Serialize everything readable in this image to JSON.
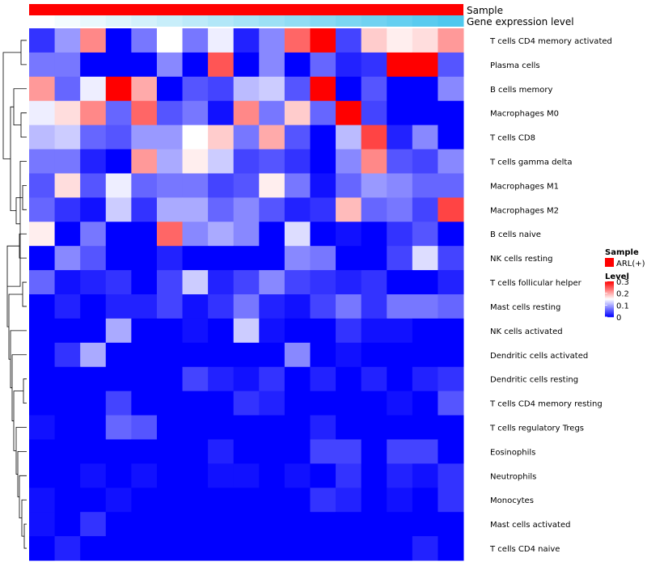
{
  "chart_data": {
    "type": "heatmap",
    "title": "",
    "annotation_tracks": [
      {
        "name": "Sample",
        "color_start": "#ff0000",
        "color_end": "#ff0000"
      },
      {
        "name": "Gene expression level",
        "color_start": "#ffffff",
        "color_end": "#4fc8ee"
      }
    ],
    "rows": [
      "T cells CD4 memory activated",
      "Plasma cells",
      "B cells memory",
      "Macrophages M0",
      "T cells CD8",
      "T cells gamma delta",
      "Macrophages M1",
      "Macrophages M2",
      "B cells naive",
      "NK cells resting",
      "T cells follicular helper",
      "Mast cells resting",
      "NK cells activated",
      "Dendritic cells activated",
      "Dendritic cells resting",
      "T cells CD4 memory resting",
      "T cells regulatory  Tregs",
      "Eosinophils",
      "Neutrophils",
      "Monocytes",
      "Mast cells activated",
      "T cells CD4 naive"
    ],
    "n_columns": 17,
    "values": [
      [
        0.03,
        0.09,
        0.22,
        0.0,
        0.07,
        0.15,
        0.07,
        0.14,
        0.02,
        0.08,
        0.24,
        0.3,
        0.04,
        0.18,
        0.16,
        0.17,
        0.21
      ],
      [
        0.07,
        0.07,
        0.0,
        0.0,
        0.0,
        0.08,
        0.0,
        0.25,
        0.0,
        0.08,
        0.0,
        0.06,
        0.02,
        0.03,
        0.3,
        0.3,
        0.05
      ],
      [
        0.21,
        0.06,
        0.14,
        0.3,
        0.2,
        0.0,
        0.05,
        0.04,
        0.11,
        0.12,
        0.05,
        0.3,
        0.0,
        0.05,
        0.0,
        0.0,
        0.08
      ],
      [
        0.14,
        0.17,
        0.22,
        0.06,
        0.24,
        0.05,
        0.07,
        0.01,
        0.22,
        0.07,
        0.18,
        0.06,
        0.3,
        0.04,
        0.0,
        0.0,
        0.0
      ],
      [
        0.11,
        0.12,
        0.06,
        0.05,
        0.09,
        0.09,
        0.15,
        0.18,
        0.07,
        0.2,
        0.05,
        0.0,
        0.11,
        0.26,
        0.02,
        0.08,
        0.0
      ],
      [
        0.07,
        0.07,
        0.02,
        0.0,
        0.21,
        0.1,
        0.16,
        0.12,
        0.04,
        0.05,
        0.03,
        0.0,
        0.08,
        0.22,
        0.05,
        0.04,
        0.08
      ],
      [
        0.05,
        0.17,
        0.05,
        0.14,
        0.06,
        0.07,
        0.07,
        0.04,
        0.05,
        0.16,
        0.07,
        0.01,
        0.06,
        0.09,
        0.08,
        0.06,
        0.06
      ],
      [
        0.06,
        0.03,
        0.01,
        0.12,
        0.03,
        0.1,
        0.1,
        0.06,
        0.08,
        0.05,
        0.02,
        0.03,
        0.19,
        0.06,
        0.07,
        0.04,
        0.26
      ],
      [
        0.16,
        0.0,
        0.07,
        0.0,
        0.0,
        0.24,
        0.08,
        0.1,
        0.08,
        0.0,
        0.13,
        0.0,
        0.01,
        0.0,
        0.03,
        0.05,
        0.0
      ],
      [
        0.0,
        0.08,
        0.05,
        0.0,
        0.0,
        0.02,
        0.0,
        0.0,
        0.0,
        0.0,
        0.08,
        0.07,
        0.0,
        0.0,
        0.04,
        0.13,
        0.04
      ],
      [
        0.06,
        0.01,
        0.02,
        0.03,
        0.0,
        0.04,
        0.12,
        0.02,
        0.04,
        0.08,
        0.04,
        0.03,
        0.02,
        0.03,
        0.0,
        0.0,
        0.02
      ],
      [
        0.0,
        0.02,
        0.0,
        0.02,
        0.02,
        0.04,
        0.01,
        0.03,
        0.07,
        0.02,
        0.01,
        0.04,
        0.07,
        0.03,
        0.07,
        0.07,
        0.06
      ],
      [
        0.0,
        0.0,
        0.0,
        0.1,
        0.0,
        0.0,
        0.01,
        0.0,
        0.12,
        0.01,
        0.0,
        0.0,
        0.03,
        0.01,
        0.01,
        0.0,
        0.0
      ],
      [
        0.0,
        0.03,
        0.1,
        0.0,
        0.0,
        0.0,
        0.0,
        0.0,
        0.0,
        0.0,
        0.08,
        0.0,
        0.01,
        0.0,
        0.0,
        0.0,
        0.0
      ],
      [
        0.0,
        0.0,
        0.0,
        0.0,
        0.0,
        0.0,
        0.04,
        0.02,
        0.01,
        0.03,
        0.0,
        0.02,
        0.0,
        0.02,
        0.0,
        0.02,
        0.03
      ],
      [
        0.0,
        0.0,
        0.0,
        0.04,
        0.0,
        0.0,
        0.0,
        0.0,
        0.03,
        0.02,
        0.0,
        0.0,
        0.0,
        0.0,
        0.01,
        0.0,
        0.05
      ],
      [
        0.01,
        0.0,
        0.0,
        0.06,
        0.05,
        0.0,
        0.0,
        0.0,
        0.0,
        0.0,
        0.0,
        0.02,
        0.0,
        0.0,
        0.0,
        0.0,
        0.0
      ],
      [
        0.0,
        0.0,
        0.0,
        0.0,
        0.0,
        0.0,
        0.0,
        0.02,
        0.0,
        0.0,
        0.0,
        0.04,
        0.04,
        0.0,
        0.04,
        0.04,
        0.0
      ],
      [
        0.0,
        0.0,
        0.01,
        0.0,
        0.01,
        0.0,
        0.0,
        0.01,
        0.01,
        0.0,
        0.01,
        0.0,
        0.03,
        0.0,
        0.02,
        0.01,
        0.03
      ],
      [
        0.01,
        0.0,
        0.0,
        0.01,
        0.0,
        0.0,
        0.0,
        0.0,
        0.0,
        0.0,
        0.0,
        0.03,
        0.02,
        0.0,
        0.01,
        0.0,
        0.03
      ],
      [
        0.01,
        0.0,
        0.03,
        0.0,
        0.0,
        0.0,
        0.0,
        0.0,
        0.0,
        0.0,
        0.0,
        0.0,
        0.0,
        0.0,
        0.0,
        0.0,
        0.0
      ],
      [
        0.0,
        0.02,
        0.0,
        0.0,
        0.0,
        0.0,
        0.0,
        0.0,
        0.0,
        0.0,
        0.0,
        0.0,
        0.0,
        0.0,
        0.0,
        0.02,
        0.0
      ]
    ],
    "color_scale": {
      "min": 0,
      "mid": 0.15,
      "max": 0.3,
      "low_color": "#0000ff",
      "mid_color": "#ffffff",
      "high_color": "#ff0000"
    },
    "legend": {
      "sample_title": "Sample",
      "sample_entry": "ARL(+)",
      "sample_color": "#ff0000",
      "level_title": "Level",
      "level_ticks": [
        "0.3",
        "0.2",
        "0.1",
        "0"
      ],
      "level_tick_values": [
        0.3,
        0.2,
        0.1,
        0
      ]
    },
    "dendrogram": "rows clustered"
  }
}
